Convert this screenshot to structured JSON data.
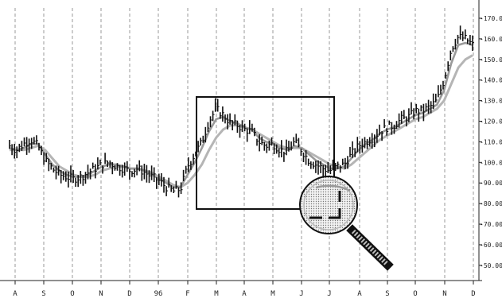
{
  "chart_data": {
    "type": "line",
    "title": "",
    "xlabel": "",
    "ylabel": "",
    "x_ticks": [
      "A",
      "S",
      "O",
      "N",
      "D",
      "96",
      "F",
      "M",
      "A",
      "M",
      "J",
      "J",
      "A",
      "S",
      "O",
      "N",
      "D"
    ],
    "y_ticks": [
      "-170.00",
      "-160.00",
      "-150.00",
      "-140.00",
      "-130.00",
      "-120.00",
      "-110.00",
      "-100.00",
      "-90.000",
      "-80.000",
      "-70.000",
      "-60.000",
      "-50.000"
    ],
    "ylim": [
      43,
      175
    ],
    "grid": "vertical dashed",
    "colors": {
      "price": "#111111",
      "ma_short": "#9a9a9a",
      "ma_long": "#b5b5b5",
      "zoom_box": "#111111"
    },
    "annotations": [
      "zoom-rectangle",
      "magnifying-glass-icon"
    ],
    "series": [
      {
        "key": "price",
        "values": [
          108,
          106,
          109,
          111,
          108,
          101,
          97,
          94,
          93,
          92,
          93,
          95,
          97,
          99,
          100,
          98,
          97,
          96,
          97,
          95,
          93,
          91,
          88,
          86,
          87,
          98,
          104,
          110,
          120,
          126,
          123,
          119,
          118,
          116,
          115,
          110,
          108,
          109,
          106,
          105,
          110,
          106,
          101,
          99,
          97,
          96,
          98,
          99,
          104,
          108,
          110,
          112,
          115,
          117,
          118,
          121,
          122,
          125,
          125,
          127,
          130,
          140,
          155,
          161,
          160,
          157
        ]
      },
      {
        "key": "ma_short",
        "values": [
          107,
          106,
          107,
          109,
          109,
          104,
          99,
          96,
          94,
          93,
          93,
          94,
          96,
          98,
          99,
          99,
          98,
          97,
          97,
          96,
          94,
          92,
          90,
          88,
          88,
          94,
          100,
          107,
          115,
          121,
          122,
          120,
          119,
          117,
          116,
          112,
          110,
          109,
          107,
          106,
          108,
          107,
          104,
          101,
          99,
          97,
          97,
          98,
          102,
          106,
          109,
          111,
          114,
          116,
          117,
          119,
          121,
          123,
          124,
          126,
          128,
          135,
          148,
          157,
          158,
          157
        ]
      },
      {
        "key": "ma_long",
        "values": [
          106,
          106,
          106,
          107,
          108,
          106,
          102,
          98,
          96,
          94,
          93,
          93,
          94,
          96,
          97,
          98,
          98,
          97,
          97,
          96,
          95,
          93,
          91,
          89,
          88,
          90,
          94,
          99,
          106,
          112,
          116,
          118,
          118,
          117,
          116,
          114,
          112,
          110,
          108,
          107,
          107,
          107,
          105,
          103,
          101,
          99,
          98,
          97,
          99,
          102,
          105,
          108,
          111,
          113,
          115,
          117,
          119,
          121,
          122,
          124,
          126,
          130,
          138,
          146,
          150,
          152
        ]
      }
    ]
  }
}
